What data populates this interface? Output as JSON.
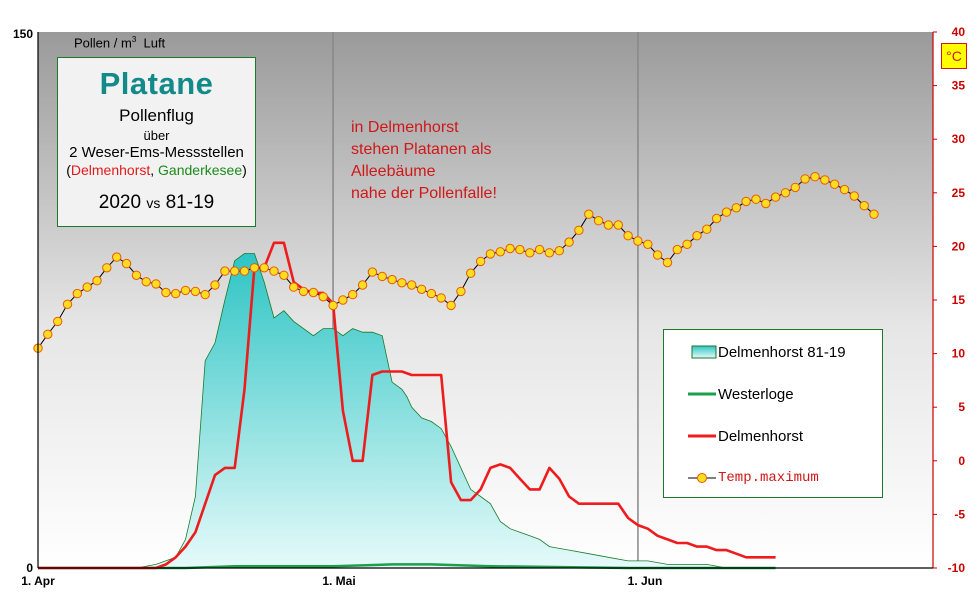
{
  "info_box": {
    "title": "Platane",
    "subtitle": "Pollenflug",
    "over": "über",
    "stations": "2 Weser-Ems-Messstellen",
    "open_paren": "(",
    "station1": "Delmenhorst",
    "comma": ", ",
    "station2": "Ganderkesee",
    "close_paren": ")",
    "year": "2020",
    "vs": "vs",
    "reference": "81-19"
  },
  "note": {
    "line1": "in Delmenhorst",
    "line2": "stehen Platanen als",
    "line3": "Alleebäume",
    "line4": "nahe der Pollenfalle!"
  },
  "unit_label": {
    "text": "Pollen / m",
    "sup": "3",
    "suffix": "  Luft"
  },
  "temp_unit": "°C",
  "legend": {
    "item1": "Delmenhorst 81-19",
    "item2": "Westerloge",
    "item3": "Delmenhorst",
    "item4": "Temp.maximum"
  },
  "colors": {
    "area_fill_top": "#2ec4c4",
    "area_fill_bottom": "#e6fafa",
    "area_stroke": "#1a7a2c",
    "westerloge": "#1aa04a",
    "delmenhorst": "#ee1c1c",
    "temp_line": "#000000",
    "temp_marker_fill": "#ffdd22",
    "temp_marker_stroke": "#e85a00",
    "right_axis": "#cc0000",
    "gridline": "#888888"
  },
  "chart_data": {
    "type": "area",
    "x_unit": "day",
    "x_ticks": [
      "1. Apr",
      "1. Mai",
      "1. Jun"
    ],
    "y_left": {
      "label": "Pollen / m3  Luft",
      "range": [
        0,
        150
      ],
      "ticks": [
        "0",
        "150"
      ]
    },
    "y_right": {
      "label": "°C",
      "range": [
        -10,
        40
      ],
      "ticks": [
        "-10",
        "-5",
        "0",
        "5",
        "10",
        "15",
        "20",
        "25",
        "30",
        "35",
        "40"
      ]
    },
    "series": [
      {
        "name": "Delmenhorst 81-19",
        "kind": "area",
        "points": [
          [
            0,
            0
          ],
          [
            10,
            0
          ],
          [
            12,
            1
          ],
          [
            14,
            3
          ],
          [
            15,
            8
          ],
          [
            16,
            20
          ],
          [
            17,
            58
          ],
          [
            18,
            63
          ],
          [
            19,
            75
          ],
          [
            20,
            86
          ],
          [
            21,
            88
          ],
          [
            22,
            88
          ],
          [
            23,
            80
          ],
          [
            24,
            70
          ],
          [
            25,
            72
          ],
          [
            26,
            69
          ],
          [
            28,
            65
          ],
          [
            29,
            67
          ],
          [
            30,
            67
          ],
          [
            31,
            65
          ],
          [
            32,
            67
          ],
          [
            33,
            66
          ],
          [
            34,
            66
          ],
          [
            35,
            65
          ],
          [
            36,
            52
          ],
          [
            37,
            50
          ],
          [
            37.5,
            48
          ],
          [
            38,
            45
          ],
          [
            39,
            42
          ],
          [
            40,
            41
          ],
          [
            41,
            39
          ],
          [
            42,
            34
          ],
          [
            43,
            28
          ],
          [
            44,
            22
          ],
          [
            45,
            20
          ],
          [
            46,
            18
          ],
          [
            47,
            13
          ],
          [
            48,
            11
          ],
          [
            49,
            10
          ],
          [
            50,
            9
          ],
          [
            51,
            8
          ],
          [
            52,
            6
          ],
          [
            54,
            5
          ],
          [
            56,
            4
          ],
          [
            58,
            3
          ],
          [
            60,
            2
          ],
          [
            62,
            2
          ],
          [
            64,
            1
          ],
          [
            66,
            1
          ],
          [
            68,
            1
          ],
          [
            70,
            0
          ],
          [
            75,
            0
          ]
        ]
      },
      {
        "name": "Westerloge",
        "kind": "line",
        "points": [
          [
            0,
            0
          ],
          [
            10,
            0
          ],
          [
            15,
            0
          ],
          [
            20,
            0.5
          ],
          [
            30,
            0.5
          ],
          [
            36,
            1
          ],
          [
            40,
            1
          ],
          [
            46,
            0.5
          ],
          [
            60,
            0
          ],
          [
            70,
            0
          ],
          [
            75,
            0
          ]
        ]
      },
      {
        "name": "Delmenhorst",
        "kind": "line",
        "points": [
          [
            0,
            0
          ],
          [
            11,
            0
          ],
          [
            12,
            0
          ],
          [
            13,
            1
          ],
          [
            14,
            3
          ],
          [
            15,
            6
          ],
          [
            16,
            10
          ],
          [
            17,
            18
          ],
          [
            18,
            26
          ],
          [
            19,
            28
          ],
          [
            20,
            28
          ],
          [
            21,
            50
          ],
          [
            22,
            84
          ],
          [
            23,
            84
          ],
          [
            24,
            91
          ],
          [
            25,
            91
          ],
          [
            26,
            80
          ],
          [
            27,
            78
          ],
          [
            28,
            77
          ],
          [
            29,
            77
          ],
          [
            30,
            74
          ],
          [
            31,
            44
          ],
          [
            32,
            30
          ],
          [
            33,
            30
          ],
          [
            34,
            54
          ],
          [
            35,
            55
          ],
          [
            36,
            55
          ],
          [
            37,
            55
          ],
          [
            38,
            54
          ],
          [
            39,
            54
          ],
          [
            40,
            54
          ],
          [
            41,
            54
          ],
          [
            42,
            24
          ],
          [
            43,
            19
          ],
          [
            44,
            19
          ],
          [
            45,
            22
          ],
          [
            46,
            28
          ],
          [
            47,
            29
          ],
          [
            48,
            28
          ],
          [
            49,
            25
          ],
          [
            50,
            22
          ],
          [
            51,
            22
          ],
          [
            52,
            28
          ],
          [
            53,
            25
          ],
          [
            54,
            20
          ],
          [
            55,
            18
          ],
          [
            56,
            18
          ],
          [
            57,
            18
          ],
          [
            58,
            18
          ],
          [
            59,
            18
          ],
          [
            60,
            14
          ],
          [
            61,
            12
          ],
          [
            62,
            11
          ],
          [
            63,
            9
          ],
          [
            64,
            8
          ],
          [
            65,
            7
          ],
          [
            66,
            7
          ],
          [
            67,
            6
          ],
          [
            68,
            6
          ],
          [
            69,
            5
          ],
          [
            70,
            5
          ],
          [
            71,
            4
          ],
          [
            72,
            3
          ],
          [
            75,
            3
          ]
        ]
      },
      {
        "name": "Temp.maximum",
        "kind": "line-marker",
        "axis": "right",
        "points": [
          [
            0,
            10.5
          ],
          [
            1,
            11.8
          ],
          [
            2,
            13.0
          ],
          [
            3,
            14.6
          ],
          [
            4,
            15.6
          ],
          [
            5,
            16.2
          ],
          [
            6,
            16.8
          ],
          [
            7,
            18.0
          ],
          [
            8,
            19.0
          ],
          [
            9,
            18.4
          ],
          [
            10,
            17.3
          ],
          [
            11,
            16.7
          ],
          [
            12,
            16.5
          ],
          [
            13,
            15.7
          ],
          [
            14,
            15.6
          ],
          [
            15,
            15.9
          ],
          [
            16,
            15.8
          ],
          [
            17,
            15.5
          ],
          [
            18,
            16.4
          ],
          [
            19,
            17.7
          ],
          [
            20,
            17.7
          ],
          [
            21,
            17.7
          ],
          [
            22,
            18.0
          ],
          [
            23,
            18.0
          ],
          [
            24,
            17.7
          ],
          [
            25,
            17.3
          ],
          [
            26,
            16.2
          ],
          [
            27,
            15.8
          ],
          [
            28,
            15.7
          ],
          [
            29,
            15.3
          ],
          [
            30,
            14.5
          ],
          [
            31,
            15.0
          ],
          [
            32,
            15.5
          ],
          [
            33,
            16.4
          ],
          [
            34,
            17.6
          ],
          [
            35,
            17.2
          ],
          [
            36,
            16.9
          ],
          [
            37,
            16.6
          ],
          [
            38,
            16.4
          ],
          [
            39,
            16.0
          ],
          [
            40,
            15.6
          ],
          [
            41,
            15.2
          ],
          [
            42,
            14.5
          ],
          [
            43,
            15.8
          ],
          [
            44,
            17.5
          ],
          [
            45,
            18.6
          ],
          [
            46,
            19.3
          ],
          [
            47,
            19.5
          ],
          [
            48,
            19.8
          ],
          [
            49,
            19.7
          ],
          [
            50,
            19.4
          ],
          [
            51,
            19.7
          ],
          [
            52,
            19.4
          ],
          [
            53,
            19.6
          ],
          [
            54,
            20.4
          ],
          [
            55,
            21.5
          ],
          [
            56,
            23.0
          ],
          [
            57,
            22.4
          ],
          [
            58,
            22.0
          ],
          [
            59,
            22.0
          ],
          [
            60,
            21.0
          ],
          [
            61,
            20.5
          ],
          [
            62,
            20.2
          ],
          [
            63,
            19.2
          ],
          [
            64,
            18.5
          ],
          [
            65,
            19.7
          ],
          [
            66,
            20.2
          ],
          [
            67,
            21.0
          ],
          [
            68,
            21.6
          ],
          [
            69,
            22.6
          ],
          [
            70,
            23.2
          ],
          [
            71,
            23.6
          ],
          [
            72,
            24.2
          ],
          [
            73,
            24.4
          ],
          [
            74,
            24.0
          ],
          [
            75,
            24.6
          ],
          [
            76,
            25.0
          ],
          [
            77,
            25.5
          ],
          [
            78,
            26.3
          ],
          [
            79,
            26.5
          ],
          [
            80,
            26.2
          ],
          [
            81,
            25.8
          ],
          [
            82,
            25.3
          ],
          [
            83,
            24.7
          ],
          [
            84,
            23.8
          ],
          [
            85,
            23.0
          ]
        ]
      }
    ]
  }
}
